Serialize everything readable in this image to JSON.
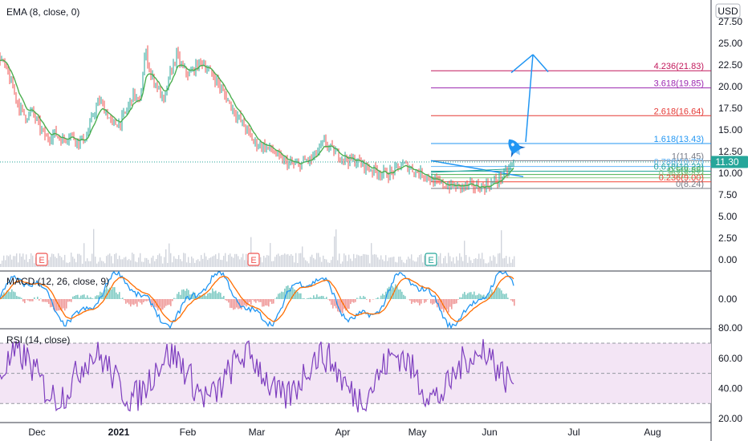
{
  "chart_data": [
    {
      "type": "line",
      "panel": "price",
      "title": "EMA (8, close, 0)",
      "currency": "USD",
      "y_ticks": [
        0.0,
        2.5,
        5.0,
        7.5,
        10.0,
        12.5,
        15.0,
        17.5,
        20.0,
        22.5,
        25.0,
        27.5
      ],
      "ylim": [
        -1.2,
        29.5
      ],
      "last_price": "11.30",
      "series": [
        {
          "points": [
            [
              0,
              23.4
            ],
            [
              8,
              21.8
            ],
            [
              15,
              20.1
            ],
            [
              24,
              17.6
            ],
            [
              32,
              16.5
            ],
            [
              40,
              17.1
            ],
            [
              50,
              15.2
            ],
            [
              58,
              14.0
            ],
            [
              68,
              14.6
            ],
            [
              78,
              13.8
            ],
            [
              88,
              14.5
            ],
            [
              98,
              13.6
            ],
            [
              108,
              14.2
            ],
            [
              116,
              16.8
            ],
            [
              124,
              18.4
            ],
            [
              132,
              17.1
            ],
            [
              140,
              15.6
            ],
            [
              150,
              15.9
            ],
            [
              158,
              17.3
            ],
            [
              166,
              19.2
            ],
            [
              174,
              18.0
            ],
            [
              181,
              24.2
            ],
            [
              188,
              21.3
            ],
            [
              196,
              20.0
            ],
            [
              204,
              18.1
            ],
            [
              212,
              21.5
            ],
            [
              220,
              23.6
            ],
            [
              228,
              22.0
            ],
            [
              236,
              21.4
            ],
            [
              244,
              22.3
            ],
            [
              252,
              22.9
            ],
            [
              260,
              21.8
            ],
            [
              268,
              21.0
            ],
            [
              276,
              19.6
            ],
            [
              284,
              18.4
            ],
            [
              292,
              17.1
            ],
            [
              300,
              16.0
            ],
            [
              308,
              14.9
            ],
            [
              316,
              13.6
            ],
            [
              324,
              13.2
            ],
            [
              332,
              13.0
            ],
            [
              340,
              12.6
            ],
            [
              348,
              11.7
            ],
            [
              356,
              11.3
            ],
            [
              364,
              11.0
            ],
            [
              372,
              10.9
            ],
            [
              380,
              11.4
            ],
            [
              388,
              11.6
            ],
            [
              396,
              12.5
            ],
            [
              404,
              13.6
            ],
            [
              412,
              12.8
            ],
            [
              420,
              12.2
            ],
            [
              428,
              11.8
            ],
            [
              436,
              11.5
            ],
            [
              444,
              11.4
            ],
            [
              452,
              11.0
            ],
            [
              460,
              10.5
            ],
            [
              468,
              10.3
            ],
            [
              476,
              10.0
            ],
            [
              484,
              9.9
            ],
            [
              492,
              10.3
            ],
            [
              500,
              11.0
            ],
            [
              508,
              10.8
            ],
            [
              516,
              10.3
            ],
            [
              524,
              10.0
            ],
            [
              532,
              9.7
            ],
            [
              540,
              9.0
            ],
            [
              548,
              8.8
            ],
            [
              556,
              8.6
            ],
            [
              564,
              8.5
            ],
            [
              572,
              8.4
            ],
            [
              580,
              8.5
            ],
            [
              588,
              8.5
            ],
            [
              596,
              8.4
            ],
            [
              604,
              8.5
            ],
            [
              612,
              8.8
            ],
            [
              620,
              9.2
            ],
            [
              628,
              9.8
            ],
            [
              634,
              10.4
            ],
            [
              640,
              11.3
            ]
          ]
        }
      ],
      "month_labels": [
        "Dec",
        "2021",
        "Feb",
        "Mar",
        "Apr",
        "May",
        "Jun",
        "Jul",
        "Aug"
      ],
      "earnings_markers": [
        "E",
        "E",
        "E"
      ],
      "fibonacci": [
        {
          "label": "4.236(21.83)",
          "value": 21.83,
          "color": "#c2185b"
        },
        {
          "label": "3.618(19.85)",
          "value": 19.85,
          "color": "#9c27b0"
        },
        {
          "label": "2.618(16.64)",
          "value": 16.64,
          "color": "#e53935"
        },
        {
          "label": "1.618(13.43)",
          "value": 13.43,
          "color": "#2196f3"
        },
        {
          "label": "1(11.45)",
          "value": 11.45,
          "color": "#787b86"
        },
        {
          "label": "0.786(10.77)",
          "value": 10.77,
          "color": "#64b5f6"
        },
        {
          "label": "0.618(10.23)",
          "value": 10.23,
          "color": "#26a69a"
        },
        {
          "label": "0.5(9.85)",
          "value": 9.85,
          "color": "#4caf50"
        },
        {
          "label": "0.382(9.47)",
          "value": 9.47,
          "color": "#81c784"
        },
        {
          "label": "0.236(9.00)",
          "value": 9.0,
          "color": "#f44336"
        },
        {
          "label": "0(8.24)",
          "value": 8.24,
          "color": "#787b86"
        }
      ]
    },
    {
      "type": "line",
      "panel": "macd",
      "title": "MACD (12, 26, close, 9)",
      "y_ticks": [
        0.0
      ],
      "ylim": [
        -1.5,
        1.5
      ]
    },
    {
      "type": "line",
      "panel": "rsi",
      "title": "RSI (14, close)",
      "y_ticks": [
        20.0,
        40.0,
        60.0,
        80.0
      ],
      "ylim": [
        19,
        81
      ],
      "bands": [
        30,
        50,
        70
      ]
    }
  ],
  "colors": {
    "up": "#26a69a",
    "down": "#ef5350",
    "macd": "#2196f3",
    "signal": "#ff6d00",
    "rsi": "#7e3fbf",
    "rsi_band": "#f3e5f5",
    "last_price_bg": "#26a69a"
  },
  "icons": [
    "rocket-icon",
    "earnings-flag-icon"
  ]
}
